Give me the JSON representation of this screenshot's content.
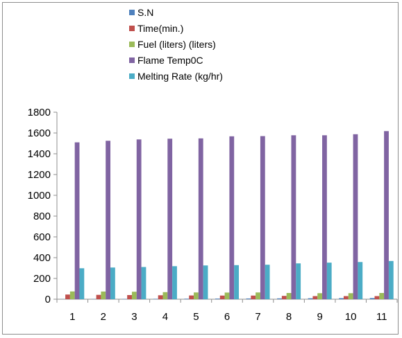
{
  "chart_data": {
    "type": "bar",
    "categories": [
      "1",
      "2",
      "3",
      "4",
      "5",
      "6",
      "7",
      "8",
      "9",
      "10",
      "11"
    ],
    "series": [
      {
        "name": "S.N",
        "color": "#4f81bd",
        "values": [
          1,
          2,
          3,
          4,
          5,
          6,
          7,
          8,
          9,
          10,
          11
        ]
      },
      {
        "name": "Time(min.)",
        "color": "#c0504d",
        "values": [
          45,
          42,
          40,
          38,
          36,
          35,
          35,
          32,
          30,
          30,
          30
        ]
      },
      {
        "name": "Fuel (liters) (liters)",
        "color": "#9bbb59",
        "values": [
          75,
          74,
          72,
          68,
          65,
          64,
          65,
          60,
          58,
          58,
          60
        ]
      },
      {
        "name": "Flame  Temp0C",
        "color": "#8064a2",
        "values": [
          1510,
          1525,
          1538,
          1545,
          1548,
          1568,
          1570,
          1578,
          1578,
          1588,
          1618
        ]
      },
      {
        "name": "Melting  Rate (kg/hr)",
        "color": "#4bacc6",
        "values": [
          298,
          305,
          310,
          318,
          325,
          328,
          332,
          345,
          352,
          358,
          368
        ]
      }
    ],
    "y_ticks": [
      "0",
      "200",
      "400",
      "600",
      "800",
      "1000",
      "1200",
      "1400",
      "1600",
      "1800"
    ],
    "ylim": [
      0,
      1800
    ],
    "grid": false,
    "legend_position": "top"
  }
}
